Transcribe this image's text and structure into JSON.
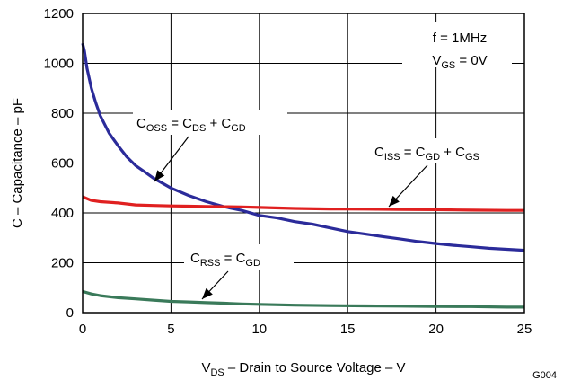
{
  "chart_data": {
    "type": "line",
    "xlabel": "V DS – Drain to Source Voltage – V",
    "xlabel_parts": {
      "main": "V",
      "sub": "DS",
      "rest": " – Drain to Source Voltage – V"
    },
    "ylabel": "C – Capacitance – pF",
    "xlim": [
      0,
      25
    ],
    "ylim": [
      0,
      1200
    ],
    "xticks": [
      "0",
      "5",
      "10",
      "15",
      "20",
      "25"
    ],
    "yticks": [
      "0",
      "200",
      "400",
      "600",
      "800",
      "1000",
      "1200"
    ],
    "grid": true,
    "figure_id": "G004",
    "conditions": {
      "freq": {
        "main": "f = 1MHz"
      },
      "vgs": {
        "main": "V",
        "sub": "GS",
        "rest": " = 0V"
      }
    },
    "series": [
      {
        "name": "COSS = CDS + CGD",
        "label_parts": [
          [
            "C",
            ""
          ],
          [
            "OSS",
            "sub"
          ],
          [
            " = C",
            ""
          ],
          [
            "DS",
            "sub"
          ],
          [
            " + C",
            ""
          ],
          [
            "GD",
            "sub"
          ]
        ],
        "color": "#2b2b9a",
        "x": [
          0,
          0.1,
          0.25,
          0.5,
          0.75,
          1,
          1.5,
          2,
          2.5,
          3,
          3.5,
          4,
          5,
          6,
          7,
          8,
          9,
          10,
          11,
          12,
          13,
          14,
          15,
          16,
          17,
          18,
          19,
          20,
          21,
          22,
          23,
          24,
          25
        ],
        "values": [
          1080,
          1050,
          980,
          900,
          840,
          790,
          720,
          670,
          625,
          590,
          565,
          540,
          500,
          470,
          445,
          425,
          410,
          390,
          380,
          365,
          355,
          340,
          325,
          315,
          305,
          295,
          285,
          277,
          270,
          264,
          258,
          254,
          250
        ]
      },
      {
        "name": "CISS = CGD + CGS",
        "label_parts": [
          [
            "C",
            ""
          ],
          [
            "ISS",
            "sub"
          ],
          [
            " = C",
            ""
          ],
          [
            "GD",
            "sub"
          ],
          [
            " + C",
            ""
          ],
          [
            "GS",
            "sub"
          ]
        ],
        "color": "#e02020",
        "x": [
          0,
          0.5,
          1,
          2,
          3,
          4,
          5,
          6,
          7,
          8,
          9,
          10,
          12,
          14,
          16,
          18,
          20,
          22,
          24,
          25
        ],
        "values": [
          465,
          450,
          445,
          440,
          432,
          430,
          428,
          427,
          426,
          425,
          424,
          422,
          418,
          416,
          415,
          414,
          413,
          411,
          410,
          410
        ]
      },
      {
        "name": "CRSS = CGD",
        "label_parts": [
          [
            "C",
            ""
          ],
          [
            "RSS",
            "sub"
          ],
          [
            " = C",
            ""
          ],
          [
            "GD",
            "sub"
          ]
        ],
        "color": "#3a7a5a",
        "x": [
          0,
          0.5,
          1,
          2,
          3,
          4,
          5,
          6,
          7,
          8,
          9,
          10,
          12,
          14,
          16,
          18,
          20,
          22,
          24,
          25
        ],
        "values": [
          85,
          75,
          68,
          60,
          55,
          50,
          45,
          43,
          40,
          38,
          35,
          33,
          30,
          28,
          27,
          26,
          25,
          24,
          22,
          22
        ]
      }
    ]
  }
}
